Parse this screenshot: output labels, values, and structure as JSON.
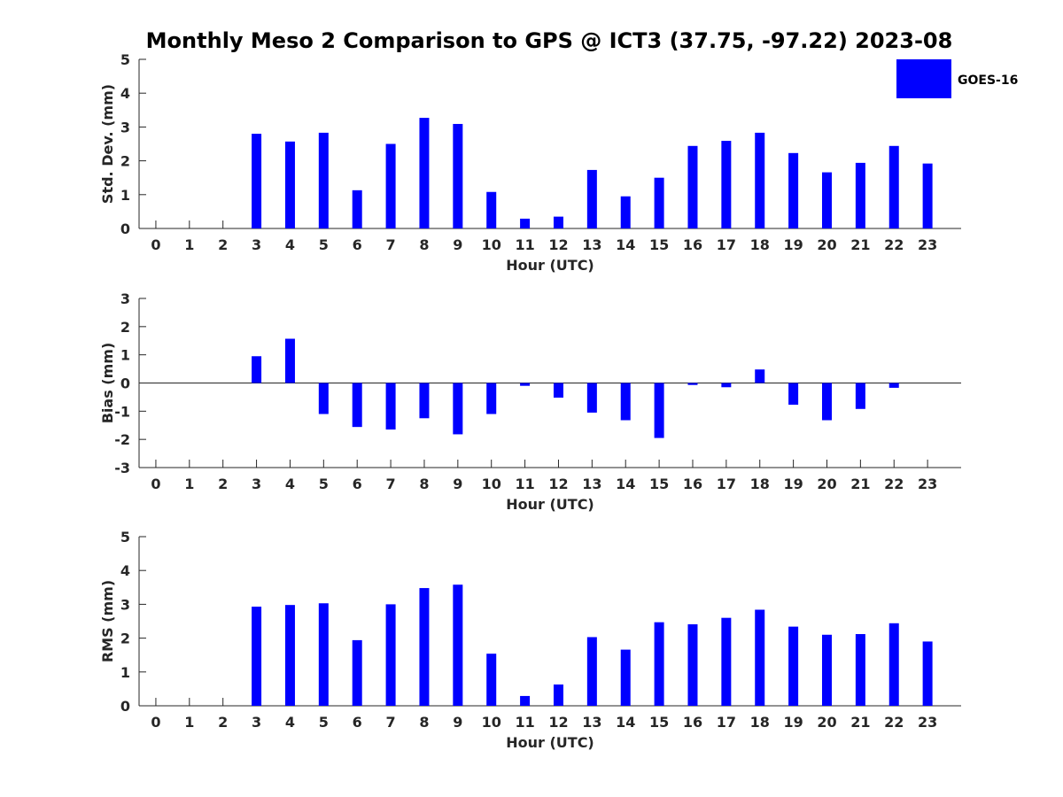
{
  "figure": {
    "title": "Monthly Meso 2 Comparison to GPS @ ICT3 (37.75, -97.22) 2023-08",
    "legend": {
      "label": "GOES-16",
      "placement": "top-right",
      "color": "#0000FF"
    }
  },
  "chart_data": [
    {
      "type": "bar",
      "xlabel": "Hour (UTC)",
      "ylabel": "Std. Dev. (mm)",
      "ylim": [
        0,
        5
      ],
      "yticks": [
        0,
        1,
        2,
        3,
        4,
        5
      ],
      "categories": [
        0,
        1,
        2,
        3,
        4,
        5,
        6,
        7,
        8,
        9,
        10,
        11,
        12,
        13,
        14,
        15,
        16,
        17,
        18,
        19,
        20,
        21,
        22,
        23
      ],
      "series": [
        {
          "name": "GOES-16",
          "color": "#0000FF",
          "values": [
            null,
            null,
            null,
            2.8,
            2.57,
            2.83,
            1.13,
            2.5,
            3.27,
            3.09,
            1.08,
            0.29,
            0.35,
            1.73,
            0.95,
            1.5,
            2.44,
            2.59,
            2.83,
            2.23,
            1.66,
            1.94,
            2.44,
            1.92
          ]
        }
      ]
    },
    {
      "type": "bar",
      "xlabel": "Hour (UTC)",
      "ylabel": "Bias (mm)",
      "ylim": [
        -3,
        3
      ],
      "yticks": [
        -3,
        -2,
        -1,
        0,
        1,
        2,
        3
      ],
      "categories": [
        0,
        1,
        2,
        3,
        4,
        5,
        6,
        7,
        8,
        9,
        10,
        11,
        12,
        13,
        14,
        15,
        16,
        17,
        18,
        19,
        20,
        21,
        22,
        23
      ],
      "series": [
        {
          "name": "GOES-16",
          "color": "#0000FF",
          "values": [
            null,
            null,
            null,
            0.95,
            1.57,
            -1.1,
            -1.56,
            -1.65,
            -1.25,
            -1.82,
            -1.1,
            -0.1,
            -0.52,
            -1.05,
            -1.32,
            -1.95,
            -0.07,
            -0.15,
            0.48,
            -0.77,
            -1.32,
            -0.92,
            -0.17,
            null
          ]
        }
      ]
    },
    {
      "type": "bar",
      "xlabel": "Hour (UTC)",
      "ylabel": "RMS (mm)",
      "ylim": [
        0,
        5
      ],
      "yticks": [
        0,
        1,
        2,
        3,
        4,
        5
      ],
      "categories": [
        0,
        1,
        2,
        3,
        4,
        5,
        6,
        7,
        8,
        9,
        10,
        11,
        12,
        13,
        14,
        15,
        16,
        17,
        18,
        19,
        20,
        21,
        22,
        23
      ],
      "series": [
        {
          "name": "GOES-16",
          "color": "#0000FF",
          "values": [
            null,
            null,
            null,
            2.93,
            2.98,
            3.03,
            1.94,
            3.0,
            3.48,
            3.58,
            1.54,
            0.29,
            0.63,
            2.03,
            1.66,
            2.47,
            2.41,
            2.6,
            2.84,
            2.34,
            2.1,
            2.12,
            2.44,
            1.9
          ]
        }
      ]
    }
  ]
}
